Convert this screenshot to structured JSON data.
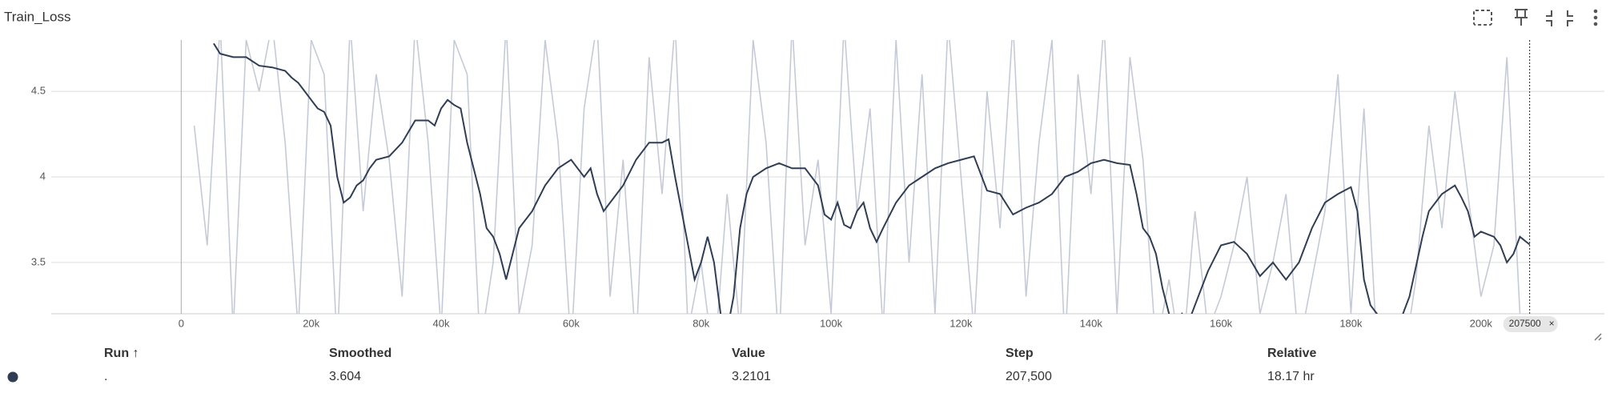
{
  "chart_data": {
    "type": "line",
    "title": "Train_Loss",
    "xlim": [
      -20000,
      219000
    ],
    "ylim": [
      3.2,
      4.8
    ],
    "xticks": [
      0,
      {
        "value": 20000,
        "label": "20k"
      },
      {
        "value": 40000,
        "label": "40k"
      },
      {
        "value": 60000,
        "label": "60k"
      },
      {
        "value": 80000,
        "label": "80k"
      },
      {
        "value": 100000,
        "label": "100k"
      },
      {
        "value": 120000,
        "label": "120k"
      },
      {
        "value": 140000,
        "label": "140k"
      },
      {
        "value": 160000,
        "label": "160k"
      },
      {
        "value": 180000,
        "label": "180k"
      },
      {
        "value": 200000,
        "label": "200k"
      }
    ],
    "yticks": [
      3.5,
      4,
      4.5
    ],
    "grid": true,
    "cursor_step": 207500,
    "series": [
      {
        "color": "#c5cad6",
        "x": [
          2000,
          4000,
          6000,
          8000,
          10000,
          12000,
          14000,
          16000,
          18000,
          20000,
          22000,
          24000,
          26000,
          28000,
          30000,
          32000,
          34000,
          36000,
          38000,
          40000,
          42000,
          44000,
          46000,
          48000,
          50000,
          52000,
          54000,
          56000,
          58000,
          60000,
          62000,
          64000,
          66000,
          68000,
          70000,
          72000,
          74000,
          76000,
          78000,
          80000,
          82000,
          84000,
          86000,
          88000,
          90000,
          92000,
          94000,
          96000,
          98000,
          100000,
          102000,
          104000,
          106000,
          108000,
          110000,
          112000,
          114000,
          116000,
          118000,
          120000,
          122000,
          124000,
          126000,
          128000,
          130000,
          132000,
          134000,
          136000,
          138000,
          140000,
          142000,
          144000,
          146000,
          148000,
          150000,
          152000,
          154000,
          156000,
          158000,
          160000,
          162000,
          164000,
          166000,
          168000,
          170000,
          172000,
          174000,
          176000,
          178000,
          180000,
          182000,
          184000,
          186000,
          188000,
          190000,
          192000,
          194000,
          196000,
          198000,
          200000,
          202000,
          204000,
          206000
        ],
        "values": [
          4.3,
          3.6,
          4.9,
          3.1,
          4.8,
          4.5,
          4.9,
          4.2,
          3.1,
          4.8,
          4.6,
          3.0,
          4.9,
          3.8,
          4.6,
          4.1,
          3.3,
          4.9,
          4.2,
          3.1,
          4.8,
          4.6,
          3.0,
          3.5,
          4.9,
          3.2,
          3.6,
          4.8,
          4.2,
          3.0,
          4.4,
          4.9,
          3.3,
          4.1,
          3.0,
          4.7,
          3.9,
          4.9,
          3.1,
          3.5,
          2.9,
          3.9,
          3.1,
          4.8,
          4.2,
          3.0,
          4.9,
          3.6,
          4.1,
          3.2,
          4.9,
          3.8,
          4.4,
          3.1,
          4.8,
          3.5,
          4.6,
          3.2,
          4.9,
          4.0,
          3.1,
          4.5,
          3.7,
          4.9,
          3.3,
          4.2,
          4.8,
          3.0,
          4.6,
          3.9,
          4.9,
          3.2,
          4.7,
          4.1,
          3.0,
          3.4,
          2.9,
          3.8,
          3.1,
          3.3,
          3.6,
          4.0,
          3.2,
          3.5,
          3.9,
          3.0,
          3.4,
          3.8,
          4.6,
          3.2,
          4.4,
          3.0,
          3.1,
          2.9,
          3.4,
          4.3,
          3.7,
          4.5,
          3.9,
          3.3,
          3.6,
          4.7,
          3.2
        ]
      },
      {
        "color": "#2f3d55",
        "x": [
          5000,
          6000,
          8000,
          10000,
          12000,
          14000,
          16000,
          17000,
          18000,
          20000,
          21000,
          22000,
          23000,
          24000,
          25000,
          26000,
          27000,
          28000,
          29000,
          30000,
          32000,
          34000,
          36000,
          38000,
          39000,
          40000,
          41000,
          42000,
          43000,
          44000,
          45000,
          46000,
          47000,
          48000,
          49000,
          50000,
          51000,
          52000,
          54000,
          56000,
          58000,
          60000,
          61000,
          62000,
          63000,
          64000,
          65000,
          66000,
          68000,
          70000,
          72000,
          74000,
          75000,
          76000,
          77000,
          78000,
          79000,
          80000,
          81000,
          82000,
          83000,
          84000,
          85000,
          86000,
          87000,
          88000,
          90000,
          92000,
          94000,
          96000,
          98000,
          99000,
          100000,
          101000,
          102000,
          103000,
          104000,
          105000,
          106000,
          107000,
          108000,
          110000,
          112000,
          114000,
          116000,
          118000,
          120000,
          122000,
          124000,
          126000,
          128000,
          130000,
          132000,
          134000,
          136000,
          138000,
          140000,
          142000,
          144000,
          146000,
          147000,
          148000,
          149000,
          150000,
          151000,
          152000,
          153000,
          154000,
          155000,
          156000,
          158000,
          160000,
          162000,
          164000,
          166000,
          168000,
          170000,
          172000,
          174000,
          176000,
          178000,
          180000,
          181000,
          182000,
          183000,
          184000,
          185000,
          187000,
          189000,
          191000,
          192000,
          194000,
          196000,
          197000,
          198000,
          199000,
          200000,
          202000,
          203000,
          204000,
          205000,
          206000,
          207500
        ],
        "values": [
          4.78,
          4.72,
          4.7,
          4.7,
          4.65,
          4.64,
          4.62,
          4.58,
          4.55,
          4.45,
          4.4,
          4.38,
          4.3,
          4.0,
          3.85,
          3.88,
          3.95,
          3.98,
          4.05,
          4.1,
          4.12,
          4.2,
          4.33,
          4.33,
          4.3,
          4.4,
          4.45,
          4.42,
          4.4,
          4.2,
          4.05,
          3.9,
          3.7,
          3.65,
          3.55,
          3.4,
          3.55,
          3.7,
          3.8,
          3.95,
          4.05,
          4.1,
          4.05,
          4.0,
          4.05,
          3.9,
          3.8,
          3.85,
          3.95,
          4.1,
          4.2,
          4.2,
          4.22,
          4.0,
          3.8,
          3.6,
          3.4,
          3.5,
          3.65,
          3.5,
          3.2,
          3.1,
          3.3,
          3.7,
          3.9,
          4.0,
          4.05,
          4.08,
          4.05,
          4.05,
          3.95,
          3.78,
          3.75,
          3.85,
          3.72,
          3.7,
          3.8,
          3.85,
          3.7,
          3.62,
          3.7,
          3.85,
          3.95,
          4.0,
          4.05,
          4.08,
          4.1,
          4.12,
          3.92,
          3.9,
          3.78,
          3.82,
          3.85,
          3.9,
          4.0,
          4.03,
          4.08,
          4.1,
          4.08,
          4.07,
          3.9,
          3.7,
          3.65,
          3.55,
          3.35,
          3.2,
          3.1,
          3.2,
          3.15,
          3.25,
          3.45,
          3.6,
          3.62,
          3.55,
          3.42,
          3.5,
          3.4,
          3.5,
          3.7,
          3.85,
          3.9,
          3.94,
          3.8,
          3.4,
          3.25,
          3.2,
          3.1,
          3.1,
          3.3,
          3.65,
          3.8,
          3.9,
          3.95,
          3.88,
          3.8,
          3.65,
          3.68,
          3.65,
          3.6,
          3.5,
          3.55,
          3.65,
          3.604
        ]
      }
    ]
  },
  "table": {
    "headers": [
      "Run ↑",
      "Smoothed",
      "Value",
      "Step",
      "Relative"
    ],
    "rows": [
      [
        ".",
        "3.604",
        "3.2101",
        "207,500",
        "18.17 hr"
      ]
    ]
  }
}
